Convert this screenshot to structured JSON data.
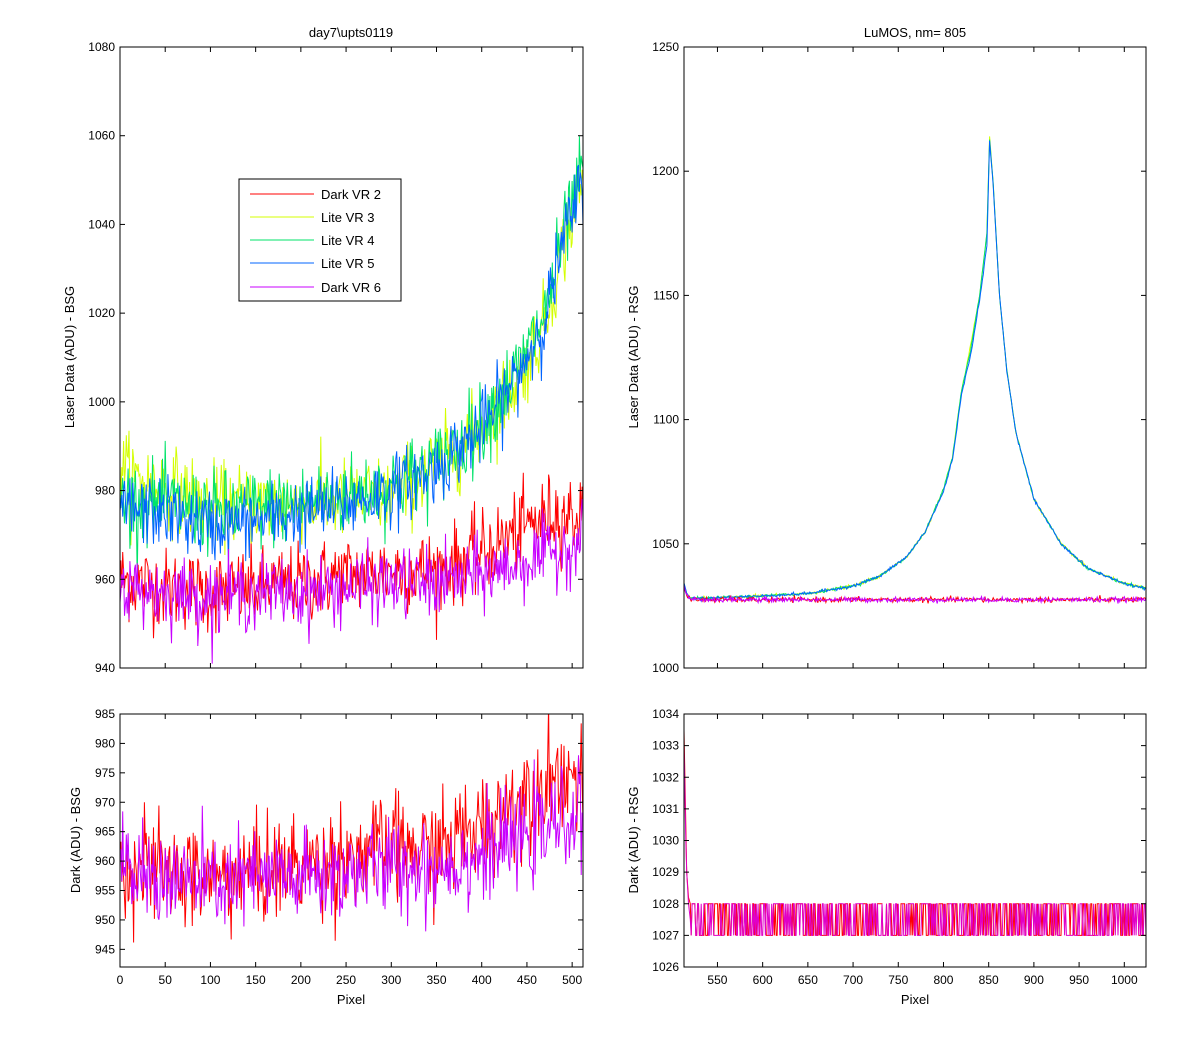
{
  "chart_data": [
    {
      "id": "bsg_laser",
      "type": "line",
      "title": "day7\\upts0119",
      "xlabel": "",
      "ylabel": "Laser Data (ADU) - BSG",
      "xlim": [
        0,
        512
      ],
      "ylim": [
        940,
        1080
      ],
      "xticks": [
        0,
        50,
        100,
        150,
        200,
        250,
        300,
        350,
        400,
        450,
        500
      ],
      "yticks": [
        940,
        960,
        980,
        1000,
        1020,
        1040,
        1060,
        1080
      ],
      "show_xtick_labels": false,
      "grid": false,
      "legend": {
        "placement": "upper-left-inside",
        "entries": [
          "Dark VR 2",
          "Lite VR 3",
          "Lite VR 4",
          "Lite VR 5",
          "Dark VR 6"
        ]
      },
      "series": [
        {
          "name": "Dark VR 2",
          "color": "#ff0000",
          "noise": 4.5,
          "x": [
            0,
            50,
            100,
            150,
            200,
            250,
            300,
            350,
            400,
            450,
            480,
            512
          ],
          "y": [
            960,
            958,
            957,
            958,
            959,
            961,
            962,
            962,
            966,
            972,
            975,
            974
          ]
        },
        {
          "name": "Lite VR 3",
          "color": "#d4ff00",
          "noise": 4.5,
          "x": [
            0,
            10,
            50,
            100,
            150,
            200,
            250,
            300,
            350,
            400,
            440,
            470,
            490,
            512
          ],
          "y": [
            988,
            983,
            981,
            977,
            977,
            977,
            978,
            979,
            986,
            994,
            1005,
            1018,
            1035,
            1050
          ]
        },
        {
          "name": "Lite VR 4",
          "color": "#00e36a",
          "noise": 4.5,
          "x": [
            0,
            50,
            100,
            150,
            200,
            250,
            300,
            350,
            400,
            440,
            470,
            490,
            512
          ],
          "y": [
            978,
            977,
            975,
            976,
            977,
            979,
            981,
            986,
            995,
            1007,
            1020,
            1037,
            1052
          ]
        },
        {
          "name": "Lite VR 5",
          "color": "#0064ff",
          "noise": 4.0,
          "x": [
            0,
            50,
            100,
            150,
            200,
            250,
            300,
            350,
            400,
            440,
            470,
            490,
            512
          ],
          "y": [
            976,
            975,
            972,
            973,
            975,
            977,
            980,
            985,
            994,
            1006,
            1019,
            1036,
            1050
          ]
        },
        {
          "name": "Dark VR 6",
          "color": "#c800ff",
          "noise": 4.0,
          "x": [
            0,
            50,
            100,
            150,
            200,
            250,
            300,
            350,
            400,
            450,
            480,
            512
          ],
          "y": [
            958,
            957,
            956,
            957,
            957,
            958,
            959,
            959,
            961,
            964,
            966,
            969
          ]
        }
      ]
    },
    {
      "id": "rsg_laser",
      "type": "line",
      "title": "LuMOS, nm= 805",
      "xlabel": "",
      "ylabel": "Laser Data (ADU) - RSG",
      "xlim": [
        513,
        1024
      ],
      "ylim": [
        1000,
        1250
      ],
      "xticks": [
        550,
        600,
        650,
        700,
        750,
        800,
        850,
        900,
        950,
        1000
      ],
      "yticks": [
        1000,
        1050,
        1100,
        1150,
        1200,
        1250
      ],
      "show_xtick_labels": false,
      "grid": false,
      "series": [
        {
          "name": "Lite VR 3",
          "color": "#d4ff00",
          "noise": 0.3,
          "x": [
            513,
            516,
            520,
            530,
            600,
            650,
            700,
            730,
            760,
            780,
            800,
            810,
            820,
            825,
            830,
            840,
            848,
            851,
            855,
            862,
            870,
            880,
            900,
            930,
            960,
            1000,
            1024
          ],
          "y": [
            1034,
            1030,
            1028,
            1028,
            1029,
            1030,
            1033,
            1037,
            1045,
            1055,
            1072,
            1085,
            1112,
            1120,
            1130,
            1150,
            1175,
            1214,
            1195,
            1150,
            1120,
            1095,
            1068,
            1050,
            1040,
            1034,
            1032
          ]
        },
        {
          "name": "Lite VR 4",
          "color": "#00e36a",
          "noise": 0.3,
          "x": [
            513,
            516,
            520,
            530,
            600,
            650,
            700,
            730,
            760,
            780,
            800,
            810,
            820,
            825,
            830,
            840,
            848,
            851,
            855,
            862,
            870,
            880,
            900,
            930,
            960,
            1000,
            1024
          ],
          "y": [
            1034,
            1030,
            1028,
            1028,
            1029,
            1030,
            1033,
            1037,
            1045,
            1055,
            1072,
            1085,
            1112,
            1120,
            1128,
            1150,
            1175,
            1213,
            1195,
            1150,
            1120,
            1095,
            1068,
            1050,
            1040,
            1034,
            1032
          ]
        },
        {
          "name": "Lite VR 5",
          "color": "#0064ff",
          "noise": 0.3,
          "x": [
            513,
            516,
            520,
            530,
            600,
            650,
            700,
            730,
            760,
            780,
            800,
            810,
            820,
            825,
            830,
            840,
            848,
            851,
            855,
            862,
            870,
            880,
            900,
            930,
            960,
            1000,
            1024
          ],
          "y": [
            1034,
            1030,
            1028,
            1028,
            1029,
            1030,
            1033,
            1037,
            1045,
            1055,
            1071,
            1084,
            1110,
            1118,
            1126,
            1148,
            1170,
            1212,
            1194,
            1150,
            1120,
            1095,
            1068,
            1050,
            1040,
            1034,
            1032
          ]
        },
        {
          "name": "Dark VR 2",
          "color": "#ff0000",
          "noise": 0.5,
          "x": [
            513,
            516,
            520,
            530,
            1024
          ],
          "y": [
            1033,
            1029,
            1027.5,
            1027.5,
            1027.5
          ]
        },
        {
          "name": "Dark VR 6",
          "color": "#c800ff",
          "noise": 0.5,
          "x": [
            513,
            516,
            520,
            530,
            1024
          ],
          "y": [
            1033,
            1029,
            1027.5,
            1027.5,
            1027.5
          ]
        }
      ]
    },
    {
      "id": "bsg_dark",
      "type": "line",
      "title": "",
      "xlabel": "Pixel",
      "ylabel": "Dark (ADU) - BSG",
      "xlim": [
        0,
        512
      ],
      "ylim": [
        942,
        985
      ],
      "xticks": [
        0,
        50,
        100,
        150,
        200,
        250,
        300,
        350,
        400,
        450,
        500
      ],
      "yticks": [
        945,
        950,
        955,
        960,
        965,
        970,
        975,
        980,
        985
      ],
      "show_xtick_labels": true,
      "grid": false,
      "series": [
        {
          "name": "Dark VR 2",
          "color": "#ff0000",
          "noise": 4.5,
          "x": [
            0,
            50,
            100,
            150,
            200,
            250,
            300,
            350,
            400,
            450,
            480,
            512
          ],
          "y": [
            960,
            958,
            957,
            958,
            959,
            961,
            962,
            962,
            966,
            972,
            975,
            974
          ]
        },
        {
          "name": "Dark VR 6",
          "color": "#c800ff",
          "noise": 4.0,
          "x": [
            0,
            50,
            100,
            150,
            200,
            250,
            300,
            350,
            400,
            450,
            480,
            512
          ],
          "y": [
            958,
            957,
            956,
            957,
            957,
            958,
            959,
            959,
            961,
            964,
            966,
            969
          ]
        }
      ]
    },
    {
      "id": "rsg_dark",
      "type": "line",
      "title": "",
      "xlabel": "Pixel",
      "ylabel": "Dark (ADU) - RSG",
      "xlim": [
        513,
        1024
      ],
      "ylim": [
        1026,
        1034
      ],
      "xticks": [
        550,
        600,
        650,
        700,
        750,
        800,
        850,
        900,
        950,
        1000
      ],
      "yticks": [
        1026,
        1027,
        1028,
        1029,
        1030,
        1031,
        1032,
        1033,
        1034
      ],
      "show_xtick_labels": true,
      "grid": false,
      "series": [
        {
          "name": "Dark VR 2",
          "color": "#ff0000",
          "noise": 0,
          "levels": [
            1027,
            1028
          ],
          "x": [
            513,
            514,
            515,
            516,
            518,
            520
          ],
          "y": [
            1033.5,
            1032,
            1030.5,
            1029,
            1028.2,
            1028
          ]
        },
        {
          "name": "Dark VR 6",
          "color": "#e000c8",
          "noise": 0,
          "levels": [
            1027,
            1028
          ],
          "x": [
            513,
            514,
            515,
            516,
            518,
            520
          ],
          "y": [
            1033,
            1031.5,
            1030,
            1029,
            1028,
            1027.5
          ]
        }
      ]
    }
  ]
}
